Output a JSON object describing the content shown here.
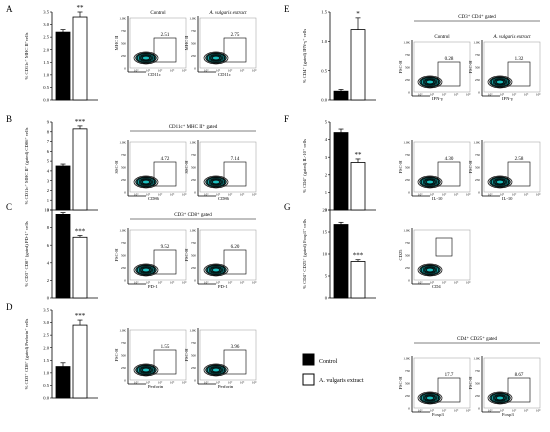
{
  "legend": {
    "control": "Control",
    "extract": "A. vulgaris extract",
    "control_color": "#000000",
    "extract_color": "#ffffff"
  },
  "chart_data": [
    {
      "panel": "A",
      "type": "bar",
      "ylabel": "% CD11c⁺ MHC II⁺cells",
      "yticks": [
        "0.0",
        "0.5",
        "1.0",
        "1.5",
        "2.0",
        "2.5",
        "3.0",
        "3.5"
      ],
      "ylim": [
        0,
        3.5
      ],
      "values": [
        2.7,
        3.3
      ],
      "errors": [
        0.1,
        0.2
      ],
      "significance": "**",
      "flow": {
        "gate": "",
        "col_labels": [
          "Control",
          "A. vulgaris extract"
        ],
        "x_axis": "CD11c",
        "y_axis": "MHC II",
        "percents": [
          "2.51",
          "2.75"
        ]
      }
    },
    {
      "panel": "B",
      "type": "bar",
      "ylabel": "% CD11c⁺ MHC II⁺ (gated) CD86⁺ cells",
      "yticks": [
        "0",
        "1",
        "2",
        "3",
        "4",
        "5",
        "6",
        "7",
        "8",
        "9"
      ],
      "ylim": [
        0,
        9
      ],
      "values": [
        4.5,
        8.3
      ],
      "errors": [
        0.2,
        0.3
      ],
      "significance": "***",
      "flow": {
        "gate": "CD11c⁺ MHC II⁺ gated",
        "x_axis": "CD86",
        "y_axis": "SSC-H",
        "percents": [
          "4.72",
          "7.14"
        ]
      }
    },
    {
      "panel": "C",
      "type": "bar",
      "ylabel": "% CD3⁺ CD8⁺ (gated) PD-1⁺ cells",
      "yticks": [
        "0",
        "2",
        "4",
        "6",
        "8",
        "10"
      ],
      "ylim": [
        0,
        10
      ],
      "values": [
        9.5,
        6.9
      ],
      "errors": [
        0.2,
        0.2
      ],
      "significance": "***",
      "flow": {
        "gate": "CD3⁺ CD8⁺ gated",
        "x_axis": "PD-1",
        "y_axis": "FSC-H",
        "percents": [
          "9.52",
          "6.20"
        ]
      }
    },
    {
      "panel": "D",
      "type": "bar",
      "ylabel": "% CD3⁺ CD8⁺ (gated) Perforin⁺ cells",
      "yticks": [
        "0.0",
        "0.5",
        "1.0",
        "1.5",
        "2.0",
        "2.5",
        "3.0",
        "3.5"
      ],
      "ylim": [
        0,
        3.5
      ],
      "values": [
        1.25,
        2.9
      ],
      "errors": [
        0.15,
        0.2
      ],
      "significance": "***",
      "flow": {
        "gate": "",
        "x_axis": "Perforin",
        "y_axis": "FSC-H",
        "percents": [
          "1.55",
          "3.96"
        ]
      }
    },
    {
      "panel": "E",
      "type": "bar",
      "ylabel": "% CD4⁺ (gated) IFN-γ⁺ cells",
      "yticks": [
        "0.0",
        "0.5",
        "1.0",
        "1.5"
      ],
      "ylim": [
        0,
        1.5
      ],
      "values": [
        0.15,
        1.2
      ],
      "errors": [
        0.03,
        0.2
      ],
      "significance": "*",
      "flow": {
        "gate": "CD3⁺ CD4⁺ gated",
        "col_labels": [
          "Control",
          "A. vulgaris extract"
        ],
        "x_axis": "IFN-γ",
        "y_axis": "FSC-H",
        "percents": [
          "0.28",
          "1.32"
        ]
      }
    },
    {
      "panel": "F",
      "type": "bar",
      "ylabel": "% CD4⁺ (gated) IL-10⁺ cells",
      "yticks": [
        "0",
        "1",
        "2",
        "3",
        "4",
        "5"
      ],
      "ylim": [
        0,
        5
      ],
      "values": [
        4.4,
        2.7
      ],
      "errors": [
        0.2,
        0.2
      ],
      "significance": "**",
      "flow": {
        "gate": "",
        "x_axis": "IL-10",
        "y_axis": "FSC-H",
        "percents": [
          "4.30",
          "2.58"
        ]
      }
    },
    {
      "panel": "G",
      "type": "bar",
      "ylabel": "% CD4⁺ CD25⁺ (gated) Foxp3⁺ cells",
      "yticks": [
        "0",
        "5",
        "10",
        "15",
        "20"
      ],
      "ylim": [
        0,
        20
      ],
      "values": [
        16.7,
        8.3
      ],
      "errors": [
        0.5,
        0.4
      ],
      "significance": "***",
      "flow": {
        "gate": "CD4⁺ CD25⁺ gated",
        "x_axis": "Foxp3",
        "y_axis": "FSC-H",
        "percents": [
          "17.7",
          "8.67"
        ],
        "extra_plot": {
          "x_axis": "CD4",
          "y_axis": "CD25"
        }
      }
    }
  ]
}
